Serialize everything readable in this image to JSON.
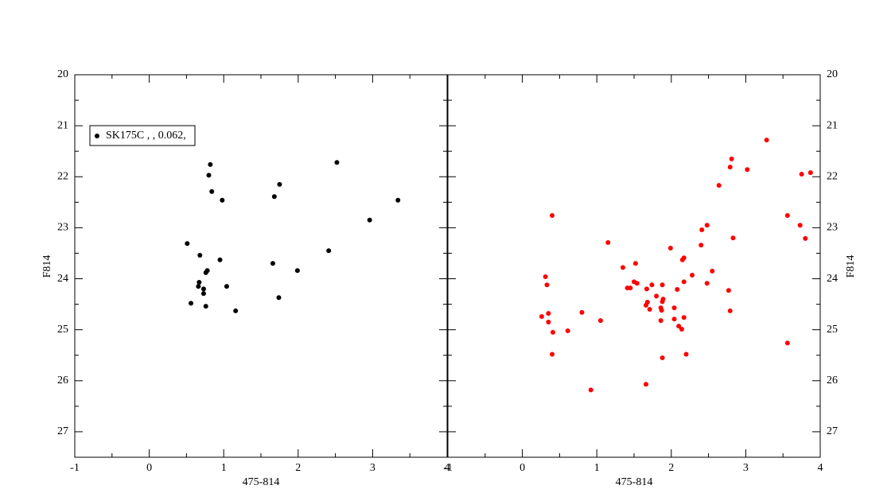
{
  "chart_data": [
    {
      "type": "scatter",
      "xlabel": "475-814",
      "ylabel": "F814",
      "ylabel_side": "left",
      "xlim": [
        -1,
        4
      ],
      "ylim": [
        27.5,
        20
      ],
      "xticks": [
        -1,
        0,
        1,
        2,
        3,
        4
      ],
      "yticks": [
        20,
        21,
        22,
        23,
        24,
        25,
        26,
        27
      ],
      "legend": "upper left",
      "series": [
        {
          "name": "SK175C  ,   , 0.062,",
          "color": "#000000",
          "x": [
            0.82,
            0.8,
            0.84,
            0.98,
            1.75,
            1.68,
            2.52,
            3.34,
            2.96,
            0.51,
            0.68,
            0.95,
            2.41,
            1.66,
            1.99,
            0.78,
            0.76,
            0.67,
            0.66,
            1.04,
            0.73,
            0.73,
            1.74,
            0.56,
            0.76,
            1.16
          ],
          "values": [
            21.76,
            21.97,
            22.29,
            22.46,
            22.15,
            22.39,
            21.72,
            22.46,
            22.85,
            23.31,
            23.54,
            23.63,
            23.45,
            23.7,
            23.84,
            23.84,
            23.88,
            24.07,
            24.15,
            24.15,
            24.2,
            24.29,
            24.37,
            24.48,
            24.54,
            24.63
          ]
        }
      ]
    },
    {
      "type": "scatter",
      "xlabel": "475-814",
      "ylabel": "F814",
      "ylabel_side": "right",
      "xlim": [
        -1,
        4
      ],
      "ylim": [
        27.5,
        20
      ],
      "xticks": [
        -1,
        0,
        1,
        2,
        3,
        4
      ],
      "yticks": [
        20,
        21,
        22,
        23,
        24,
        25,
        26,
        27
      ],
      "series": [
        {
          "color": "#ff0000",
          "x": [
            3.28,
            2.81,
            2.79,
            3.02,
            3.75,
            3.87,
            2.64,
            0.4,
            3.56,
            3.73,
            2.48,
            2.41,
            2.83,
            3.8,
            1.15,
            2.4,
            1.99,
            2.17,
            2.15,
            1.52,
            1.35,
            2.55,
            2.28,
            0.31,
            1.5,
            0.33,
            1.54,
            2.48,
            2.17,
            1.74,
            1.88,
            1.41,
            1.45,
            1.67,
            2.08,
            2.77,
            1.8,
            1.89,
            1.88,
            1.68,
            1.66,
            1.86,
            2.04,
            1.71,
            1.87,
            2.79,
            0.8,
            0.35,
            0.26,
            2.17,
            2.04,
            1.05,
            0.35,
            1.86,
            2.1,
            2.14,
            0.61,
            0.41,
            3.56,
            2.2,
            0.4,
            1.88,
            1.66,
            0.92
          ],
          "values": [
            21.28,
            21.65,
            21.81,
            21.86,
            21.95,
            21.92,
            22.17,
            22.76,
            22.76,
            22.95,
            22.95,
            23.04,
            23.2,
            23.21,
            23.29,
            23.34,
            23.4,
            23.59,
            23.63,
            23.7,
            23.78,
            23.85,
            23.93,
            23.96,
            24.06,
            24.12,
            24.09,
            24.09,
            24.06,
            24.12,
            24.12,
            24.18,
            24.18,
            24.2,
            24.21,
            24.23,
            24.34,
            24.4,
            24.45,
            24.46,
            24.52,
            24.57,
            24.57,
            24.6,
            24.62,
            24.63,
            24.66,
            24.68,
            24.74,
            24.76,
            24.79,
            24.82,
            24.85,
            24.82,
            24.93,
            24.99,
            25.02,
            25.05,
            25.26,
            25.48,
            25.48,
            25.55,
            26.07,
            26.18
          ]
        }
      ]
    }
  ]
}
